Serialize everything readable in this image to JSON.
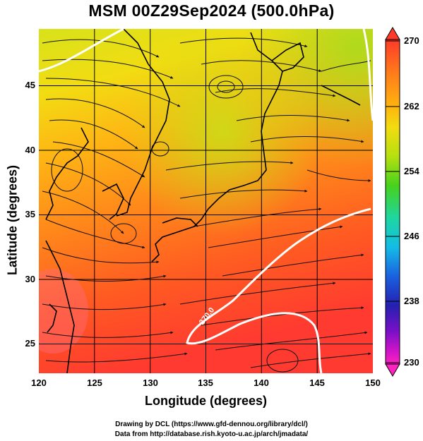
{
  "title": "MSM 00Z29Sep2024 (500.0hPa)",
  "x_axis": {
    "label": "Longitude (degrees)",
    "ticks": [
      "120",
      "125",
      "130",
      "135",
      "140",
      "145",
      "150"
    ]
  },
  "y_axis": {
    "label": "Latitude  (degrees)",
    "ticks": [
      "25",
      "30",
      "35",
      "40",
      "45"
    ]
  },
  "colorbar": {
    "ticks": [
      "270",
      "262",
      "254",
      "246",
      "238",
      "230"
    ],
    "colors": [
      "#ff3a2a",
      "#ff7a1a",
      "#ffb010",
      "#f2dc10",
      "#b6e010",
      "#46d21c",
      "#1ed6a0",
      "#14bce6",
      "#1a60e0",
      "#2420b0",
      "#7a10c8",
      "#d014c8",
      "#ff22c0"
    ]
  },
  "contour_label": "270.0",
  "credits": {
    "line1": "Drawing by DCL (https://www.gfd-dennou.org/library/dcl/)",
    "line2": "Data from http://database.rish.kyoto-u.ac.jp/arch/jmadata/"
  }
}
